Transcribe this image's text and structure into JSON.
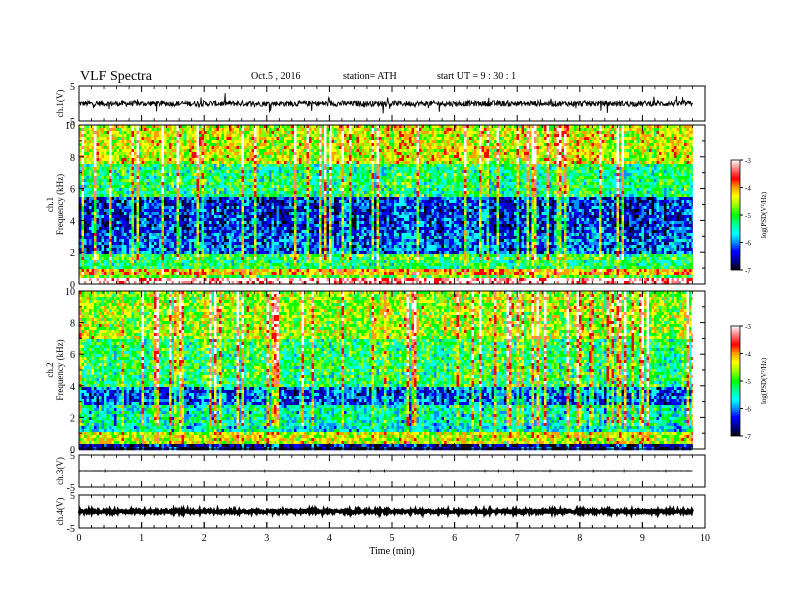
{
  "header": {
    "title": "VLF  Spectra",
    "date": "Oct.5  , 2016",
    "station": "station= ATH",
    "start": "start  UT  =   9  : 30 : 1"
  },
  "chart_data": [
    {
      "type": "line",
      "panel": "ch1-waveform",
      "ylabel": "ch.1(V)",
      "ylim": [
        -5,
        5
      ],
      "ytick_labels": [
        "5",
        "-5"
      ],
      "xlim": [
        0,
        10
      ],
      "data_span_min": [
        0,
        9.8
      ],
      "baseline_v": 0.0,
      "noise_amplitude_v": 0.8
    },
    {
      "type": "heatmap",
      "panel": "ch1-spectrogram",
      "ylabel": "ch.1\nFrequency  (kHz)",
      "ylim": [
        0,
        10
      ],
      "ytick_labels": [
        "0",
        "2",
        "4",
        "6",
        "8",
        "10"
      ],
      "xlim": [
        0,
        10
      ],
      "data_span_min": [
        0,
        9.8
      ],
      "colorbar": {
        "label": "log(PSD(V²/Hz)",
        "range": [
          -7,
          -3
        ],
        "tick_labels": [
          "-3",
          "-4",
          "-5",
          "-6",
          "-7"
        ]
      },
      "band_profile": [
        {
          "freq_khz": [
            0,
            0.3
          ],
          "logpsd": -3.2
        },
        {
          "freq_khz": [
            0.3,
            0.6
          ],
          "logpsd": -5.0
        },
        {
          "freq_khz": [
            0.6,
            1.0
          ],
          "logpsd": -4.2
        },
        {
          "freq_khz": [
            1.0,
            1.8
          ],
          "logpsd": -5.3
        },
        {
          "freq_khz": [
            1.8,
            3.2
          ],
          "logpsd": -6.4
        },
        {
          "freq_khz": [
            3.2,
            5.5
          ],
          "logpsd": -6.6
        },
        {
          "freq_khz": [
            5.5,
            7.5
          ],
          "logpsd": -5.5
        },
        {
          "freq_khz": [
            7.5,
            10.0
          ],
          "logpsd": -4.7
        }
      ]
    },
    {
      "type": "heatmap",
      "panel": "ch2-spectrogram",
      "ylabel": "ch.2\nFrequency  (kHz)",
      "ylim": [
        0,
        10
      ],
      "ytick_labels": [
        "0",
        "2",
        "4",
        "6",
        "8",
        "10"
      ],
      "xlim": [
        0,
        10
      ],
      "data_span_min": [
        0,
        9.8
      ],
      "colorbar": {
        "label": "log(PSD(V²/Hz)",
        "range": [
          -7,
          -3
        ],
        "tick_labels": [
          "-3",
          "-4",
          "-5",
          "-6",
          "-7"
        ]
      },
      "band_profile": [
        {
          "freq_khz": [
            0,
            0.3
          ],
          "logpsd": -6.8
        },
        {
          "freq_khz": [
            0.3,
            1.0
          ],
          "logpsd": -4.6
        },
        {
          "freq_khz": [
            1.0,
            2.8
          ],
          "logpsd": -5.7
        },
        {
          "freq_khz": [
            2.8,
            4.0
          ],
          "logpsd": -6.4
        },
        {
          "freq_khz": [
            4.0,
            7.0
          ],
          "logpsd": -5.4
        },
        {
          "freq_khz": [
            7.0,
            10.0
          ],
          "logpsd": -4.9
        }
      ]
    },
    {
      "type": "line",
      "panel": "ch3-waveform",
      "ylabel": "ch.3(V)",
      "ylim": [
        -5,
        5
      ],
      "ytick_labels": [
        "5",
        "-5"
      ],
      "xlim": [
        0,
        10
      ],
      "data_span_min": [
        0,
        9.8
      ],
      "baseline_v": 0.0,
      "noise_amplitude_v": 0.05
    },
    {
      "type": "line",
      "panel": "ch4-waveform",
      "ylabel": "ch.4(V)",
      "ylim": [
        -5,
        5
      ],
      "ytick_labels": [
        "5",
        "-5"
      ],
      "xlim": [
        0,
        10
      ],
      "data_span_min": [
        0,
        9.8
      ],
      "baseline_v": 0.0,
      "noise_amplitude_v": 0.35
    }
  ],
  "x_axis": {
    "xlabel": "Time  (min)",
    "tick_labels": [
      "0",
      "1",
      "2",
      "3",
      "4",
      "5",
      "6",
      "7",
      "8",
      "9",
      "10"
    ]
  },
  "colors": {
    "colormap": [
      "#000000",
      "#000090",
      "#0000ff",
      "#0090ff",
      "#00ffff",
      "#00ff90",
      "#00ff00",
      "#90ff00",
      "#ffff00",
      "#ffa000",
      "#ff0000",
      "#ff8080",
      "#ffffff"
    ],
    "trace": "#000000",
    "axis": "#000000"
  }
}
